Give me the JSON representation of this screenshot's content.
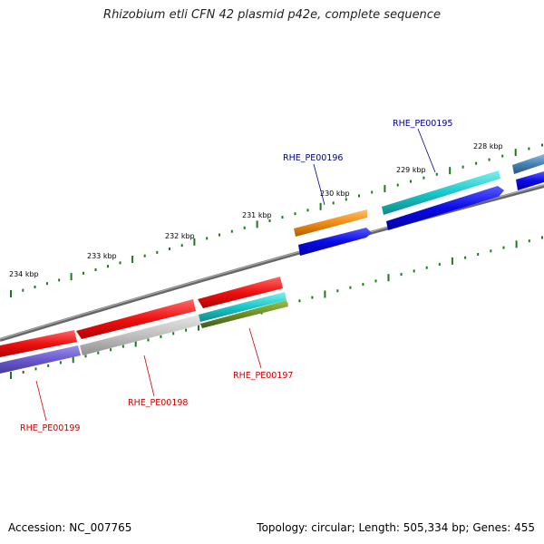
{
  "title": "Rhizobium etli CFN 42 plasmid p42e, complete sequence",
  "footer": {
    "accession": "Accession: NC_007765",
    "topology": "Topology: circular; Length: 505,334 bp; Genes: 455"
  },
  "ticks": [
    {
      "label": "228 kbp"
    },
    {
      "label": "229 kbp"
    },
    {
      "label": "230 kbp"
    },
    {
      "label": "231 kbp"
    },
    {
      "label": "232 kbp"
    },
    {
      "label": "233 kbp"
    },
    {
      "label": "234 kbp"
    }
  ],
  "gene_labels": [
    {
      "label": "RHE_PE00195"
    },
    {
      "label": "RHE_PE00196"
    },
    {
      "label": "RHE_PE00197"
    },
    {
      "label": "RHE_PE00198"
    },
    {
      "label": "RHE_PE00199"
    }
  ],
  "colors": {
    "backbone": "#808080",
    "tick": "#1a7a1a",
    "forward_label": "#00008b",
    "reverse_label": "#cc0000",
    "red": "#ee1111",
    "blue": "#0a0ae6",
    "cyan": "#19c8c8",
    "orange": "#f08c14",
    "olive": "#6b8e23",
    "gray": "#c0c0c0",
    "slate": "#6a5acd",
    "steel": "#4682b4"
  }
}
